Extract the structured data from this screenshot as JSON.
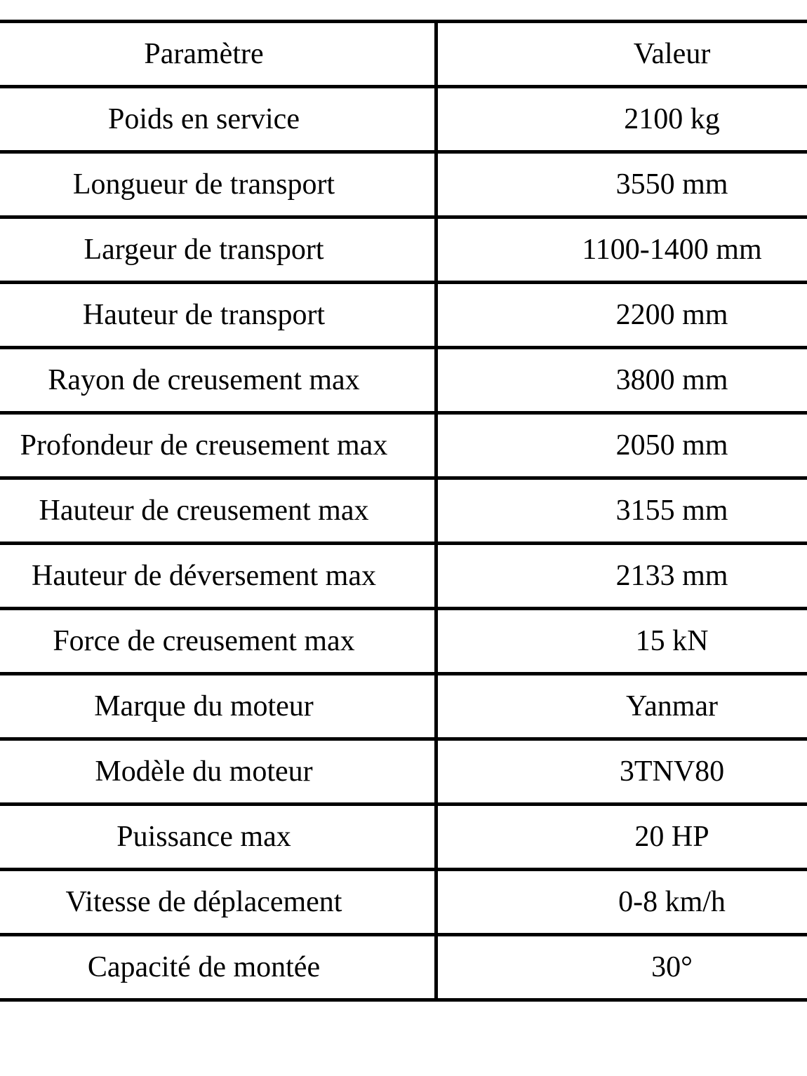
{
  "table": {
    "columns": [
      "Paramètre",
      "Valeur"
    ],
    "rows": [
      {
        "parametre": "Poids en service",
        "valeur": "2100 kg"
      },
      {
        "parametre": "Longueur de transport",
        "valeur": "3550 mm"
      },
      {
        "parametre": "Largeur de transport",
        "valeur": "1100-1400 mm"
      },
      {
        "parametre": "Hauteur de transport",
        "valeur": "2200 mm"
      },
      {
        "parametre": "Rayon de creusement max",
        "valeur": "3800 mm"
      },
      {
        "parametre": "Profondeur de creusement max",
        "valeur": "2050 mm"
      },
      {
        "parametre": "Hauteur de creusement max",
        "valeur": "3155 mm"
      },
      {
        "parametre": "Hauteur de déversement max",
        "valeur": "2133 mm"
      },
      {
        "parametre": "Force de creusement max",
        "valeur": "15 kN"
      },
      {
        "parametre": "Marque du moteur",
        "valeur": "Yanmar"
      },
      {
        "parametre": "Modèle du moteur",
        "valeur": "3TNV80"
      },
      {
        "parametre": "Puissance max",
        "valeur": "20 HP"
      },
      {
        "parametre": "Vitesse de déplacement",
        "valeur": "0-8 km/h"
      },
      {
        "parametre": "Capacité de montée",
        "valeur": "30°"
      }
    ]
  },
  "colors": {
    "border": "#000000",
    "text": "#000000",
    "background": "#ffffff"
  }
}
